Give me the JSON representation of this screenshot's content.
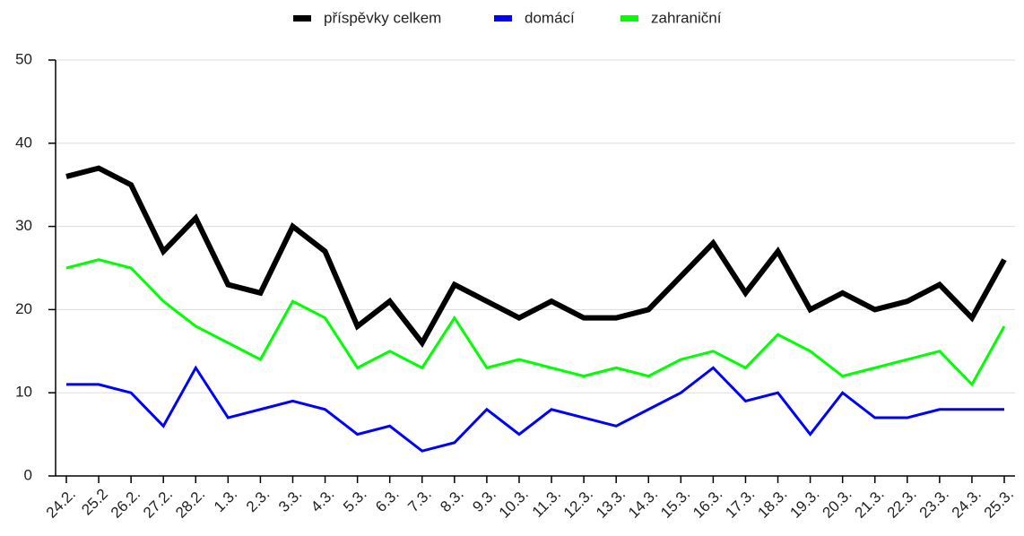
{
  "chart_data": {
    "type": "line",
    "categories": [
      "24.2.",
      "25.2",
      "26.2.",
      "27.2.",
      "28.2.",
      "1.3.",
      "2.3.",
      "3.3.",
      "4.3.",
      "5.3.",
      "6.3.",
      "7.3.",
      "8.3.",
      "9.3.",
      "10.3.",
      "11.3.",
      "12.3.",
      "13.3.",
      "14.3.",
      "15.3.",
      "16.3.",
      "17.3.",
      "18.3.",
      "19.3.",
      "20.3.",
      "21.3.",
      "22.3.",
      "23.3.",
      "24.3.",
      "25.3."
    ],
    "series": [
      {
        "name": "příspěvky celkem",
        "color": "#000000",
        "values": [
          36,
          37,
          35,
          27,
          31,
          23,
          22,
          30,
          27,
          18,
          21,
          16,
          23,
          21,
          19,
          21,
          19,
          19,
          20,
          24,
          28,
          22,
          27,
          20,
          22,
          20,
          21,
          23,
          19,
          26
        ]
      },
      {
        "name": "domácí",
        "color": "#0000ff",
        "values": [
          11,
          11,
          10,
          6,
          13,
          7,
          8,
          9,
          8,
          5,
          6,
          3,
          4,
          8,
          5,
          8,
          7,
          6,
          8,
          10,
          13,
          9,
          10,
          5,
          10,
          7,
          7,
          8,
          8,
          8
        ]
      },
      {
        "name": "zahraniční",
        "color": "#00ff00",
        "values": [
          25,
          26,
          25,
          21,
          18,
          16,
          14,
          21,
          19,
          13,
          15,
          13,
          19,
          13,
          14,
          13,
          12,
          13,
          12,
          14,
          15,
          13,
          17,
          15,
          12,
          13,
          14,
          15,
          11,
          18
        ]
      }
    ],
    "ylim": [
      0,
      50
    ],
    "yticks": [
      0,
      10,
      20,
      30,
      40,
      50
    ],
    "grid": true,
    "legend": "top"
  }
}
